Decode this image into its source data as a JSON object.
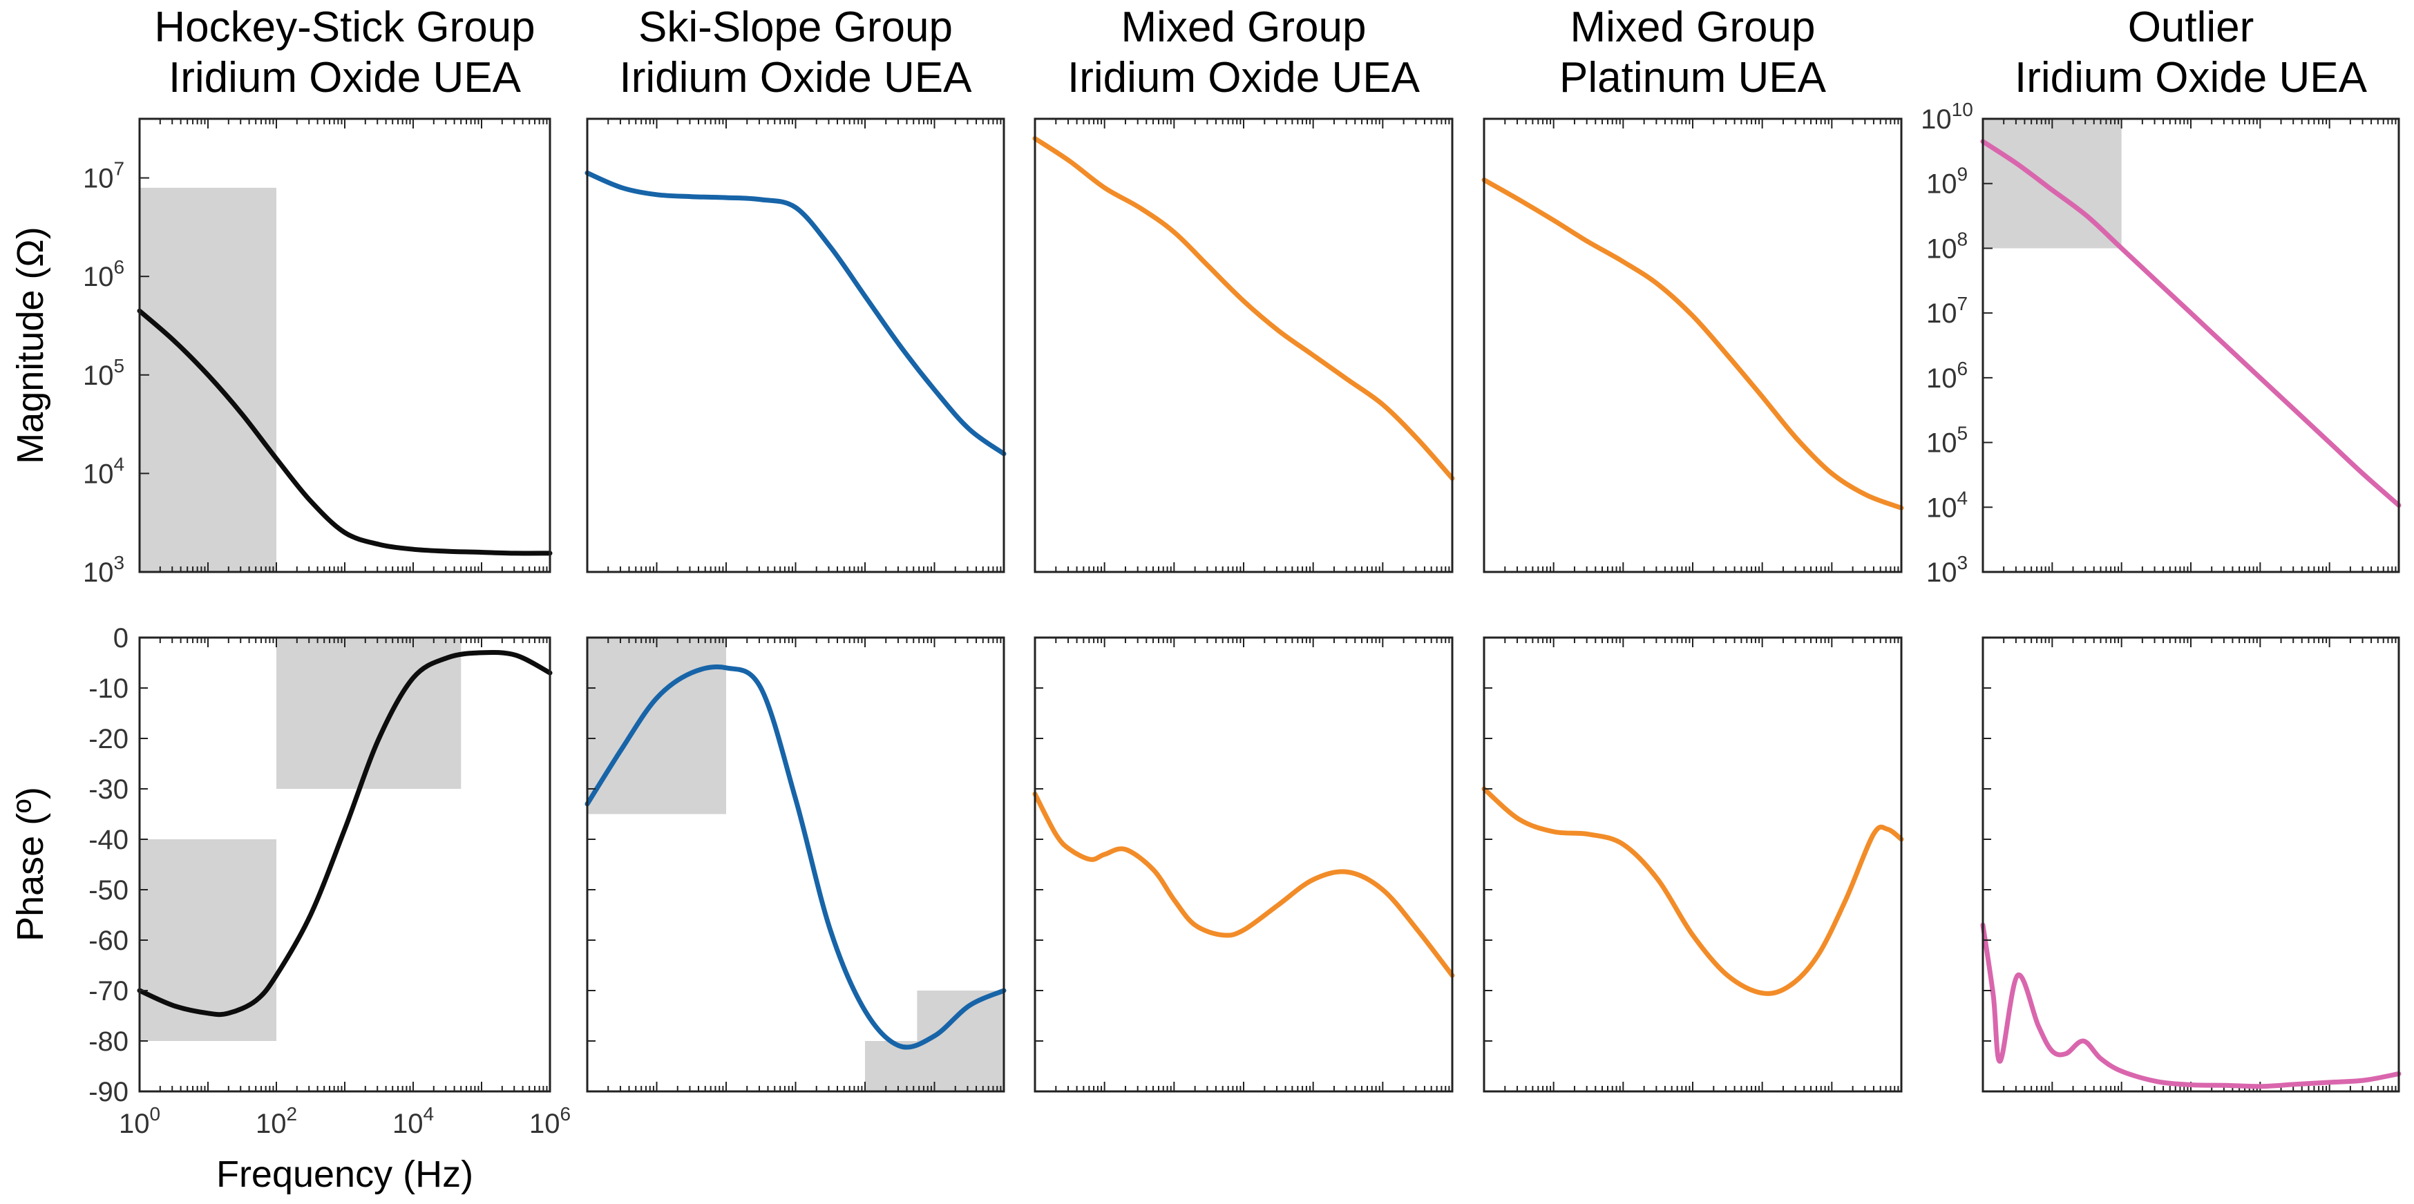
{
  "chart_data": {
    "type": "line",
    "x_scale": "log",
    "x_range_hz": [
      1,
      1000000
    ],
    "x_tick_base": "10",
    "x_tick_exponents": [
      "0",
      "2",
      "4",
      "6"
    ],
    "xlabel": "Frequency (Hz)",
    "magnitude": {
      "ylabel": "Magnitude (Ω)",
      "y_scale": "log",
      "y_tick_base": "10",
      "tick_exponents_default": [
        "3",
        "4",
        "5",
        "6",
        "7"
      ],
      "tick_exponents_outlier": [
        "3",
        "4",
        "5",
        "6",
        "7",
        "8",
        "9",
        "10"
      ]
    },
    "phase": {
      "ylabel": "Phase (º)",
      "ylim": [
        -90,
        0
      ],
      "tick_labels": [
        "0",
        "-10",
        "-20",
        "-30",
        "-40",
        "-50",
        "-60",
        "-70",
        "-80",
        "-90"
      ]
    },
    "panels": [
      {
        "title_line1": "Hockey-Stick Group",
        "title_line2": "Iridium Oxide UEA",
        "color": "#0d0d0d",
        "mag_ylim_exp": [
          3,
          7.6
        ],
        "mag": [
          [
            0,
            5.65
          ],
          [
            0.5,
            5.35
          ],
          [
            1,
            5.0
          ],
          [
            1.5,
            4.6
          ],
          [
            2,
            4.15
          ],
          [
            2.5,
            3.72
          ],
          [
            3,
            3.4
          ],
          [
            3.5,
            3.28
          ],
          [
            4,
            3.23
          ],
          [
            4.5,
            3.21
          ],
          [
            5,
            3.2
          ],
          [
            5.5,
            3.19
          ],
          [
            6,
            3.19
          ]
        ],
        "mag_shaded": [
          {
            "x": [
              0,
              2
            ],
            "y": [
              3,
              6.9
            ]
          }
        ],
        "phase": [
          [
            0,
            -70
          ],
          [
            0.5,
            -73
          ],
          [
            1,
            -74.5
          ],
          [
            1.3,
            -74.5
          ],
          [
            1.7,
            -72
          ],
          [
            2,
            -67
          ],
          [
            2.5,
            -55
          ],
          [
            3,
            -38
          ],
          [
            3.5,
            -20
          ],
          [
            4,
            -8
          ],
          [
            4.5,
            -4
          ],
          [
            5,
            -3
          ],
          [
            5.5,
            -3.5
          ],
          [
            6,
            -7
          ]
        ],
        "phase_shaded": [
          {
            "x": [
              0,
              2
            ],
            "y": [
              -80,
              -40
            ]
          },
          {
            "x": [
              2,
              4.7
            ],
            "y": [
              -30,
              0
            ]
          }
        ]
      },
      {
        "title_line1": "Ski-Slope Group",
        "title_line2": "Iridium Oxide UEA",
        "color": "#1764a8",
        "mag_ylim_exp": [
          3,
          7.6
        ],
        "mag": [
          [
            0,
            7.05
          ],
          [
            0.5,
            6.9
          ],
          [
            1,
            6.83
          ],
          [
            1.5,
            6.81
          ],
          [
            2,
            6.8
          ],
          [
            2.5,
            6.78
          ],
          [
            3,
            6.7
          ],
          [
            3.5,
            6.3
          ],
          [
            4,
            5.8
          ],
          [
            4.5,
            5.3
          ],
          [
            5,
            4.85
          ],
          [
            5.5,
            4.45
          ],
          [
            6,
            4.2
          ]
        ],
        "mag_shaded": [],
        "phase": [
          [
            0,
            -33
          ],
          [
            0.5,
            -22
          ],
          [
            1,
            -12
          ],
          [
            1.5,
            -7
          ],
          [
            2,
            -6
          ],
          [
            2.5,
            -10
          ],
          [
            3,
            -32
          ],
          [
            3.5,
            -58
          ],
          [
            4,
            -74
          ],
          [
            4.5,
            -81
          ],
          [
            5,
            -79
          ],
          [
            5.5,
            -73
          ],
          [
            6,
            -70
          ]
        ],
        "phase_shaded": [
          {
            "x": [
              0,
              2
            ],
            "y": [
              -35,
              0
            ]
          },
          {
            "x": [
              4,
              6
            ],
            "y": [
              -90,
              -80
            ]
          },
          {
            "x": [
              4.75,
              6
            ],
            "y": [
              -80,
              -70
            ]
          }
        ]
      },
      {
        "title_line1": "Mixed Group",
        "title_line2": "Iridium Oxide UEA",
        "color": "#f28c28",
        "mag_ylim_exp": [
          3,
          7.6
        ],
        "mag": [
          [
            0,
            7.4
          ],
          [
            0.5,
            7.17
          ],
          [
            1,
            6.9
          ],
          [
            1.5,
            6.7
          ],
          [
            2,
            6.45
          ],
          [
            2.5,
            6.1
          ],
          [
            3,
            5.75
          ],
          [
            3.5,
            5.45
          ],
          [
            4,
            5.2
          ],
          [
            4.5,
            4.95
          ],
          [
            5,
            4.7
          ],
          [
            5.5,
            4.35
          ],
          [
            6,
            3.95
          ]
        ],
        "mag_shaded": [],
        "phase": [
          [
            0,
            -31
          ],
          [
            0.3,
            -39
          ],
          [
            0.5,
            -42
          ],
          [
            0.8,
            -44
          ],
          [
            1,
            -43
          ],
          [
            1.3,
            -42
          ],
          [
            1.7,
            -46
          ],
          [
            2,
            -52
          ],
          [
            2.3,
            -57
          ],
          [
            2.7,
            -59
          ],
          [
            3,
            -58
          ],
          [
            3.5,
            -53
          ],
          [
            4,
            -48
          ],
          [
            4.5,
            -46.5
          ],
          [
            5,
            -50
          ],
          [
            5.5,
            -58
          ],
          [
            6,
            -67
          ]
        ],
        "phase_shaded": []
      },
      {
        "title_line1": "Mixed Group",
        "title_line2": "Platinum UEA",
        "color": "#f28c28",
        "mag_ylim_exp": [
          3,
          7.6
        ],
        "mag": [
          [
            0,
            6.98
          ],
          [
            0.5,
            6.78
          ],
          [
            1,
            6.57
          ],
          [
            1.5,
            6.35
          ],
          [
            2,
            6.15
          ],
          [
            2.5,
            5.92
          ],
          [
            3,
            5.6
          ],
          [
            3.5,
            5.2
          ],
          [
            4,
            4.78
          ],
          [
            4.5,
            4.35
          ],
          [
            5,
            4.0
          ],
          [
            5.5,
            3.78
          ],
          [
            6,
            3.65
          ]
        ],
        "mag_shaded": [],
        "phase": [
          [
            0,
            -30
          ],
          [
            0.5,
            -36
          ],
          [
            1,
            -38.5
          ],
          [
            1.5,
            -39
          ],
          [
            2,
            -41
          ],
          [
            2.5,
            -48
          ],
          [
            3,
            -59
          ],
          [
            3.5,
            -67
          ],
          [
            4,
            -70.5
          ],
          [
            4.4,
            -69
          ],
          [
            4.8,
            -63
          ],
          [
            5.2,
            -52
          ],
          [
            5.6,
            -39
          ],
          [
            5.8,
            -38
          ],
          [
            6,
            -40
          ]
        ],
        "phase_shaded": []
      },
      {
        "title_line1": "Outlier",
        "title_line2": "Iridium Oxide UEA",
        "color": "#d966ad",
        "mag_ylim_exp": [
          3,
          10
        ],
        "mag": [
          [
            0,
            9.65
          ],
          [
            0.5,
            9.3
          ],
          [
            1,
            8.9
          ],
          [
            1.5,
            8.5
          ],
          [
            2,
            8.0
          ],
          [
            2.5,
            7.5
          ],
          [
            3,
            7.0
          ],
          [
            3.5,
            6.5
          ],
          [
            4,
            6.0
          ],
          [
            4.5,
            5.5
          ],
          [
            5,
            5.0
          ],
          [
            5.5,
            4.5
          ],
          [
            6,
            4.03
          ]
        ],
        "mag_shaded": [
          {
            "x": [
              0,
              2
            ],
            "y": [
              8,
              10
            ]
          }
        ],
        "phase": [
          [
            0,
            -57
          ],
          [
            0.15,
            -71
          ],
          [
            0.25,
            -84
          ],
          [
            0.5,
            -67
          ],
          [
            0.8,
            -77
          ],
          [
            1,
            -82
          ],
          [
            1.2,
            -82.5
          ],
          [
            1.45,
            -80
          ],
          [
            1.7,
            -83.5
          ],
          [
            2,
            -86
          ],
          [
            2.5,
            -88
          ],
          [
            3,
            -88.7
          ],
          [
            3.5,
            -88.8
          ],
          [
            4,
            -89
          ],
          [
            4.5,
            -88.6
          ],
          [
            5,
            -88.2
          ],
          [
            5.5,
            -87.8
          ],
          [
            6,
            -86.5
          ]
        ],
        "phase_shaded": []
      }
    ]
  }
}
